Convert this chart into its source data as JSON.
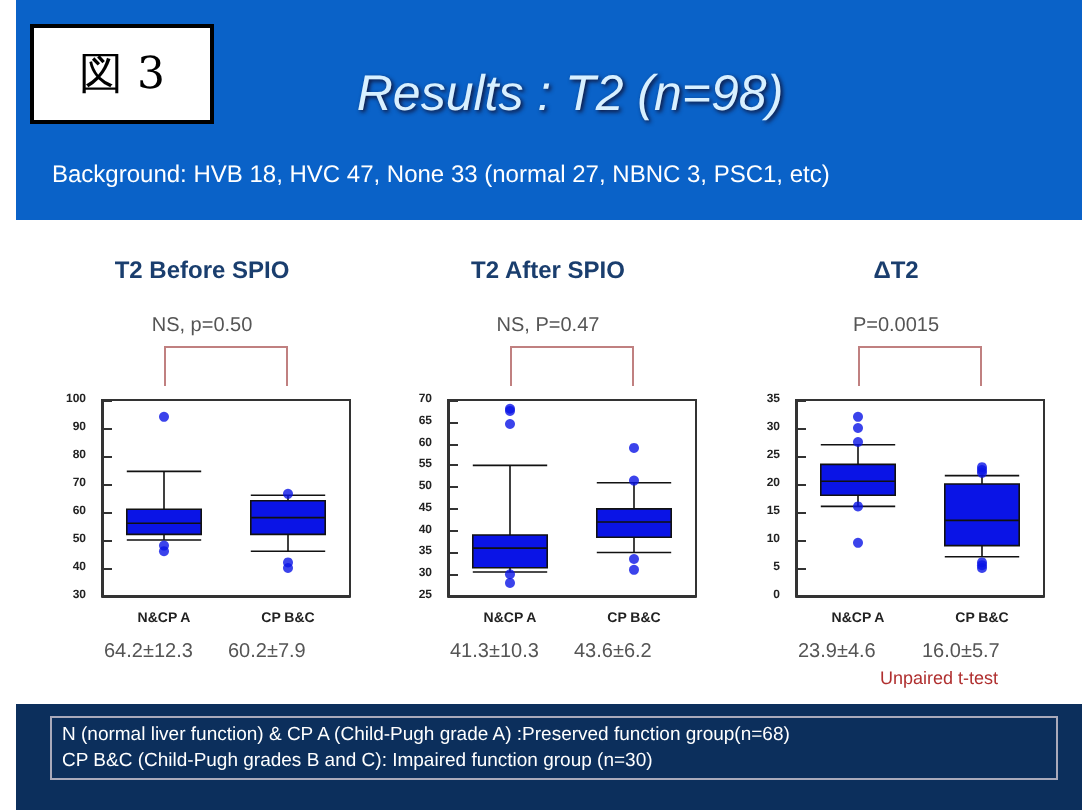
{
  "chart_data": [
    {
      "type": "other",
      "title": "Results : T2 (n=98)",
      "annotations": [
        "図 3",
        "Background: HVB 18, HVC 47, None 33 (normal 27, NBNC 3, PSC1, etc)",
        "Unpaired t-test",
        "N (normal  liver function) & CP A (Child-Pugh grade A) :Preserved function  group(n=68)",
        "CP B&C  (Child-Pugh grades B and C): Impaired function group (n=30)"
      ]
    },
    {
      "type": "box",
      "title": "T2 Before SPIO",
      "categories": [
        "N&CP A",
        "CP B&C"
      ],
      "color": "#0a14e6",
      "marker": "circle",
      "grid": false,
      "ylim": [
        30,
        100
      ],
      "yticks": [
        30,
        40,
        50,
        60,
        70,
        80,
        90,
        100
      ],
      "boxes": [
        {
          "low": 50,
          "q1": 52,
          "median": 56,
          "q3": 61,
          "high": 74.5,
          "outliers": [
            94,
            48,
            46
          ]
        },
        {
          "low": 46,
          "q1": 52,
          "median": 58,
          "q3": 64,
          "high": 66,
          "outliers": [
            66.5,
            42,
            40
          ]
        }
      ],
      "annotations": [
        "NS, p=0.50",
        "64.2±12.3",
        "60.2±7.9"
      ]
    },
    {
      "type": "box",
      "title": "T2 After SPIO",
      "categories": [
        "N&CP A",
        "CP B&C"
      ],
      "color": "#0a14e6",
      "marker": "circle",
      "grid": false,
      "ylim": [
        25,
        70
      ],
      "yticks": [
        25,
        30,
        35,
        40,
        45,
        50,
        55,
        60,
        65,
        70
      ],
      "boxes": [
        {
          "low": 30.5,
          "q1": 31.5,
          "median": 36,
          "q3": 39,
          "high": 55,
          "outliers": [
            68,
            67.5,
            64.5,
            30,
            28
          ]
        },
        {
          "low": 35,
          "q1": 38.5,
          "median": 42,
          "q3": 45,
          "high": 51,
          "outliers": [
            59,
            51.5,
            33.5,
            31
          ]
        }
      ],
      "annotations": [
        "NS, P=0.47",
        "41.3±10.3",
        "43.6±6.2"
      ]
    },
    {
      "type": "box",
      "title": "ΔT2",
      "categories": [
        "N&CP A",
        "CP B&C"
      ],
      "color": "#0a14e6",
      "marker": "circle",
      "grid": false,
      "ylim": [
        0,
        35
      ],
      "yticks": [
        0,
        5,
        10,
        15,
        20,
        25,
        30,
        35
      ],
      "boxes": [
        {
          "low": 16,
          "q1": 18,
          "median": 20.5,
          "q3": 23.5,
          "high": 27,
          "outliers": [
            32,
            30,
            27.5,
            16,
            9.5
          ]
        },
        {
          "low": 7,
          "q1": 9,
          "median": 13.5,
          "q3": 20,
          "high": 21.5,
          "outliers": [
            23,
            22.5,
            22,
            6,
            5.5,
            5
          ]
        }
      ],
      "annotations": [
        "P=0.0015",
        "23.9±4.6",
        "16.0±5.7"
      ]
    }
  ]
}
